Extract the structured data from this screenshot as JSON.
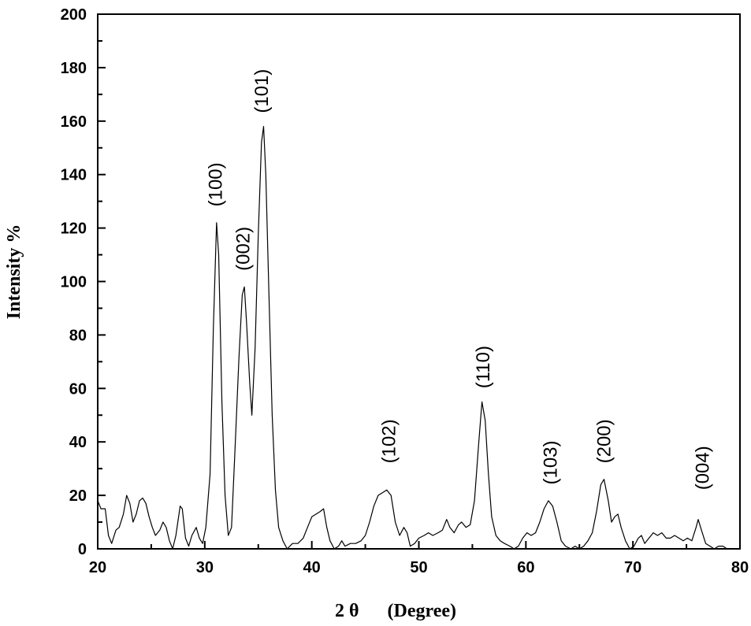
{
  "chart_data": {
    "type": "line",
    "title": "",
    "xlabel": "2 θ      (Degree)",
    "ylabel": "Intensity %",
    "xlim": [
      20,
      80
    ],
    "ylim": [
      0,
      200
    ],
    "x_ticks": [
      20,
      30,
      40,
      50,
      60,
      70,
      80
    ],
    "y_ticks": [
      0,
      20,
      40,
      60,
      80,
      100,
      120,
      140,
      160,
      180,
      200
    ],
    "grid": false,
    "legend": "none",
    "series": [
      {
        "line_color": "#000000",
        "points": [
          [
            20.0,
            18
          ],
          [
            20.3,
            15
          ],
          [
            20.7,
            15
          ],
          [
            21.0,
            5
          ],
          [
            21.3,
            2
          ],
          [
            21.7,
            7
          ],
          [
            22.0,
            8
          ],
          [
            22.4,
            13
          ],
          [
            22.7,
            20
          ],
          [
            23.0,
            17
          ],
          [
            23.3,
            10
          ],
          [
            23.6,
            13
          ],
          [
            23.9,
            18
          ],
          [
            24.2,
            19
          ],
          [
            24.5,
            17
          ],
          [
            24.8,
            12
          ],
          [
            25.1,
            8
          ],
          [
            25.4,
            5
          ],
          [
            25.8,
            7
          ],
          [
            26.1,
            10
          ],
          [
            26.4,
            8
          ],
          [
            26.7,
            3
          ],
          [
            27.0,
            0
          ],
          [
            27.3,
            5
          ],
          [
            27.7,
            16
          ],
          [
            27.9,
            15
          ],
          [
            28.2,
            4
          ],
          [
            28.5,
            1
          ],
          [
            28.8,
            5
          ],
          [
            29.2,
            8
          ],
          [
            29.5,
            4
          ],
          [
            29.8,
            2
          ],
          [
            30.1,
            8
          ],
          [
            30.5,
            28
          ],
          [
            30.8,
            82
          ],
          [
            31.1,
            122
          ],
          [
            31.3,
            110
          ],
          [
            31.6,
            55
          ],
          [
            31.9,
            20
          ],
          [
            32.2,
            5
          ],
          [
            32.5,
            8
          ],
          [
            32.8,
            35
          ],
          [
            33.2,
            72
          ],
          [
            33.5,
            95
          ],
          [
            33.7,
            98
          ],
          [
            33.9,
            85
          ],
          [
            34.2,
            62
          ],
          [
            34.4,
            50
          ],
          [
            34.7,
            75
          ],
          [
            35.0,
            118
          ],
          [
            35.3,
            152
          ],
          [
            35.5,
            158
          ],
          [
            35.7,
            140
          ],
          [
            36.0,
            95
          ],
          [
            36.3,
            50
          ],
          [
            36.6,
            22
          ],
          [
            36.9,
            8
          ],
          [
            37.3,
            3
          ],
          [
            37.7,
            0
          ],
          [
            38.2,
            2
          ],
          [
            38.7,
            2
          ],
          [
            39.2,
            4
          ],
          [
            39.6,
            8
          ],
          [
            40.0,
            12
          ],
          [
            40.4,
            13
          ],
          [
            40.8,
            14
          ],
          [
            41.1,
            15
          ],
          [
            41.4,
            8
          ],
          [
            41.7,
            3
          ],
          [
            42.1,
            0
          ],
          [
            42.5,
            1
          ],
          [
            42.8,
            3
          ],
          [
            43.1,
            1
          ],
          [
            43.6,
            2
          ],
          [
            44.1,
            2
          ],
          [
            44.6,
            3
          ],
          [
            45.0,
            5
          ],
          [
            45.4,
            10
          ],
          [
            45.8,
            16
          ],
          [
            46.2,
            20
          ],
          [
            46.6,
            21
          ],
          [
            47.0,
            22
          ],
          [
            47.4,
            20
          ],
          [
            47.8,
            10
          ],
          [
            48.2,
            5
          ],
          [
            48.6,
            8
          ],
          [
            48.9,
            6
          ],
          [
            49.2,
            1
          ],
          [
            49.6,
            2
          ],
          [
            50.0,
            4
          ],
          [
            50.5,
            5
          ],
          [
            50.9,
            6
          ],
          [
            51.3,
            5
          ],
          [
            51.8,
            6
          ],
          [
            52.2,
            7
          ],
          [
            52.6,
            11
          ],
          [
            52.9,
            8
          ],
          [
            53.3,
            6
          ],
          [
            53.7,
            9
          ],
          [
            54.0,
            10
          ],
          [
            54.4,
            8
          ],
          [
            54.8,
            9
          ],
          [
            55.2,
            18
          ],
          [
            55.6,
            40
          ],
          [
            55.9,
            55
          ],
          [
            56.2,
            48
          ],
          [
            56.5,
            28
          ],
          [
            56.8,
            12
          ],
          [
            57.2,
            5
          ],
          [
            57.6,
            3
          ],
          [
            58.0,
            2
          ],
          [
            58.5,
            1
          ],
          [
            58.9,
            0
          ],
          [
            59.3,
            1
          ],
          [
            59.7,
            4
          ],
          [
            60.1,
            6
          ],
          [
            60.5,
            5
          ],
          [
            60.9,
            6
          ],
          [
            61.3,
            10
          ],
          [
            61.7,
            15
          ],
          [
            62.1,
            18
          ],
          [
            62.5,
            16
          ],
          [
            62.9,
            10
          ],
          [
            63.3,
            3
          ],
          [
            63.7,
            1
          ],
          [
            64.2,
            0
          ],
          [
            64.6,
            1
          ],
          [
            65.0,
            0
          ],
          [
            65.4,
            1
          ],
          [
            65.8,
            3
          ],
          [
            66.2,
            6
          ],
          [
            66.6,
            14
          ],
          [
            67.0,
            24
          ],
          [
            67.3,
            26
          ],
          [
            67.7,
            18
          ],
          [
            68.0,
            10
          ],
          [
            68.3,
            12
          ],
          [
            68.6,
            13
          ],
          [
            68.9,
            8
          ],
          [
            69.3,
            3
          ],
          [
            69.7,
            0
          ],
          [
            70.1,
            1
          ],
          [
            70.5,
            4
          ],
          [
            70.8,
            5
          ],
          [
            71.1,
            2
          ],
          [
            71.5,
            4
          ],
          [
            71.9,
            6
          ],
          [
            72.3,
            5
          ],
          [
            72.7,
            6
          ],
          [
            73.1,
            4
          ],
          [
            73.5,
            4
          ],
          [
            73.9,
            5
          ],
          [
            74.3,
            4
          ],
          [
            74.7,
            3
          ],
          [
            75.1,
            4
          ],
          [
            75.5,
            3
          ],
          [
            75.9,
            8
          ],
          [
            76.1,
            11
          ],
          [
            76.4,
            7
          ],
          [
            76.8,
            2
          ],
          [
            77.2,
            1
          ],
          [
            77.6,
            0
          ],
          [
            78.0,
            1
          ],
          [
            78.4,
            1
          ],
          [
            78.8,
            0
          ]
        ]
      }
    ],
    "peak_labels": [
      {
        "text": "(100)",
        "x": 31.0,
        "y": 128
      },
      {
        "text": "(002)",
        "x": 33.6,
        "y": 104
      },
      {
        "text": "(101)",
        "x": 35.3,
        "y": 163
      },
      {
        "text": "(102)",
        "x": 47.2,
        "y": 32
      },
      {
        "text": "(110)",
        "x": 56.0,
        "y": 60
      },
      {
        "text": "(103)",
        "x": 62.3,
        "y": 24
      },
      {
        "text": "(200)",
        "x": 67.3,
        "y": 32
      },
      {
        "text": "(004)",
        "x": 76.5,
        "y": 22
      }
    ]
  }
}
